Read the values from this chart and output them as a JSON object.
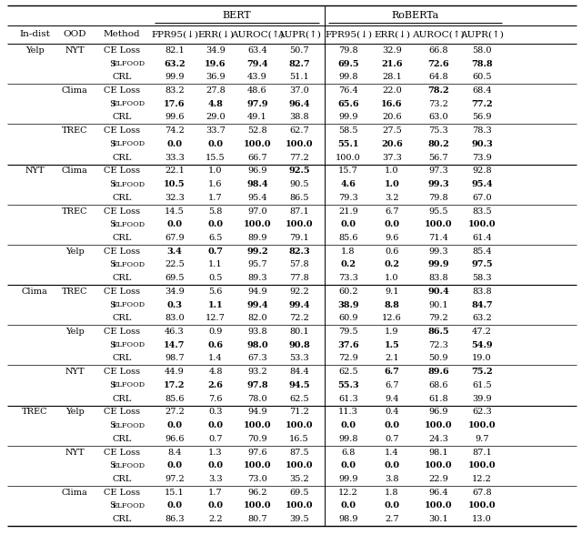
{
  "title": "",
  "bert_header": "BERT",
  "roberta_header": "RoBERTa",
  "col_headers": [
    "FPR95(↓)",
    "ERR(↓)",
    "AUROC(↑)",
    "AUPR(↑)",
    "FPR95(↓)",
    "ERR(↓)",
    "AUROC(↑)",
    "AUPR(↑)"
  ],
  "rows": [
    {
      "indist": "Yelp",
      "ood": "NYT",
      "method": "CE Loss",
      "bert": [
        82.1,
        34.9,
        63.4,
        50.7
      ],
      "roberta": [
        79.8,
        32.9,
        66.8,
        58.0
      ],
      "bold_bert": [],
      "bold_roberta": []
    },
    {
      "indist": "",
      "ood": "",
      "method": "SELFOOD",
      "bert": [
        63.2,
        19.6,
        79.4,
        82.7
      ],
      "roberta": [
        69.5,
        21.6,
        72.6,
        78.8
      ],
      "bold_bert": [
        0,
        1,
        2,
        3
      ],
      "bold_roberta": [
        0,
        1,
        2,
        3
      ]
    },
    {
      "indist": "",
      "ood": "",
      "method": "CRL",
      "bert": [
        99.9,
        36.9,
        43.9,
        51.1
      ],
      "roberta": [
        99.8,
        28.1,
        64.8,
        60.5
      ],
      "bold_bert": [],
      "bold_roberta": []
    },
    {
      "indist": "",
      "ood": "Clima",
      "method": "CE Loss",
      "bert": [
        83.2,
        27.8,
        48.6,
        37.0
      ],
      "roberta": [
        76.4,
        22.0,
        78.2,
        68.4
      ],
      "bold_bert": [],
      "bold_roberta": [
        2
      ]
    },
    {
      "indist": "",
      "ood": "",
      "method": "SELFOOD",
      "bert": [
        17.6,
        4.8,
        97.9,
        96.4
      ],
      "roberta": [
        65.6,
        16.6,
        73.2,
        77.2
      ],
      "bold_bert": [
        0,
        1,
        2,
        3
      ],
      "bold_roberta": [
        0,
        1,
        3
      ]
    },
    {
      "indist": "",
      "ood": "",
      "method": "CRL",
      "bert": [
        99.6,
        29.0,
        49.1,
        38.8
      ],
      "roberta": [
        99.9,
        20.6,
        63.0,
        56.9
      ],
      "bold_bert": [],
      "bold_roberta": []
    },
    {
      "indist": "",
      "ood": "TREC",
      "method": "CE Loss",
      "bert": [
        74.2,
        33.7,
        52.8,
        62.7
      ],
      "roberta": [
        58.5,
        27.5,
        75.3,
        78.3
      ],
      "bold_bert": [],
      "bold_roberta": []
    },
    {
      "indist": "",
      "ood": "",
      "method": "SELFOOD",
      "bert": [
        0.0,
        0.0,
        100.0,
        100.0
      ],
      "roberta": [
        55.1,
        20.6,
        80.2,
        90.3
      ],
      "bold_bert": [
        0,
        1,
        2,
        3
      ],
      "bold_roberta": [
        0,
        1,
        2,
        3
      ]
    },
    {
      "indist": "",
      "ood": "",
      "method": "CRL",
      "bert": [
        33.3,
        15.5,
        66.7,
        77.2
      ],
      "roberta": [
        100.0,
        37.3,
        56.7,
        73.9
      ],
      "bold_bert": [],
      "bold_roberta": []
    },
    {
      "indist": "NYT",
      "ood": "Clima",
      "method": "CE Loss",
      "bert": [
        22.1,
        1.0,
        96.9,
        92.5
      ],
      "roberta": [
        15.7,
        1.0,
        97.3,
        92.8
      ],
      "bold_bert": [
        3
      ],
      "bold_roberta": []
    },
    {
      "indist": "",
      "ood": "",
      "method": "SELFOOD",
      "bert": [
        10.5,
        1.6,
        98.4,
        90.5
      ],
      "roberta": [
        4.6,
        1.0,
        99.3,
        95.4
      ],
      "bold_bert": [
        0,
        2
      ],
      "bold_roberta": [
        0,
        1,
        2,
        3
      ]
    },
    {
      "indist": "",
      "ood": "",
      "method": "CRL",
      "bert": [
        32.3,
        1.7,
        95.4,
        86.5
      ],
      "roberta": [
        79.3,
        3.2,
        79.8,
        67.0
      ],
      "bold_bert": [],
      "bold_roberta": []
    },
    {
      "indist": "",
      "ood": "TREC",
      "method": "CE Loss",
      "bert": [
        14.5,
        5.8,
        97.0,
        87.1
      ],
      "roberta": [
        21.9,
        6.7,
        95.5,
        83.5
      ],
      "bold_bert": [],
      "bold_roberta": []
    },
    {
      "indist": "",
      "ood": "",
      "method": "SELFOOD",
      "bert": [
        0.0,
        0.0,
        100.0,
        100.0
      ],
      "roberta": [
        0.0,
        0.0,
        100.0,
        100.0
      ],
      "bold_bert": [
        0,
        1,
        2,
        3
      ],
      "bold_roberta": [
        0,
        1,
        2,
        3
      ]
    },
    {
      "indist": "",
      "ood": "",
      "method": "CRL",
      "bert": [
        67.9,
        6.5,
        89.9,
        79.1
      ],
      "roberta": [
        85.6,
        9.6,
        71.4,
        61.4
      ],
      "bold_bert": [],
      "bold_roberta": []
    },
    {
      "indist": "",
      "ood": "Yelp",
      "method": "CE Loss",
      "bert": [
        3.4,
        0.7,
        99.2,
        82.3
      ],
      "roberta": [
        1.8,
        0.6,
        99.3,
        85.4
      ],
      "bold_bert": [
        0,
        1,
        2,
        3
      ],
      "bold_roberta": []
    },
    {
      "indist": "",
      "ood": "",
      "method": "SELFOOD",
      "bert": [
        22.5,
        1.1,
        95.7,
        57.8
      ],
      "roberta": [
        0.2,
        0.2,
        99.9,
        97.5
      ],
      "bold_bert": [],
      "bold_roberta": [
        0,
        1,
        2,
        3
      ]
    },
    {
      "indist": "",
      "ood": "",
      "method": "CRL",
      "bert": [
        69.5,
        0.5,
        89.3,
        77.8
      ],
      "roberta": [
        73.3,
        1.0,
        83.8,
        58.3
      ],
      "bold_bert": [],
      "bold_roberta": []
    },
    {
      "indist": "Clima",
      "ood": "TREC",
      "method": "CE Loss",
      "bert": [
        34.9,
        5.6,
        94.9,
        92.2
      ],
      "roberta": [
        60.2,
        9.1,
        90.4,
        83.8
      ],
      "bold_bert": [],
      "bold_roberta": [
        2
      ]
    },
    {
      "indist": "",
      "ood": "",
      "method": "SELFOOD",
      "bert": [
        0.3,
        1.1,
        99.4,
        99.4
      ],
      "roberta": [
        38.9,
        8.8,
        90.1,
        84.7
      ],
      "bold_bert": [
        0,
        1,
        2,
        3
      ],
      "bold_roberta": [
        0,
        1,
        3
      ]
    },
    {
      "indist": "",
      "ood": "",
      "method": "CRL",
      "bert": [
        83.0,
        12.7,
        82.0,
        72.2
      ],
      "roberta": [
        60.9,
        12.6,
        79.2,
        63.2
      ],
      "bold_bert": [],
      "bold_roberta": []
    },
    {
      "indist": "",
      "ood": "Yelp",
      "method": "CE Loss",
      "bert": [
        46.3,
        0.9,
        93.8,
        80.1
      ],
      "roberta": [
        79.5,
        1.9,
        86.5,
        47.2
      ],
      "bold_bert": [],
      "bold_roberta": [
        2
      ]
    },
    {
      "indist": "",
      "ood": "",
      "method": "SELFOOD",
      "bert": [
        14.7,
        0.6,
        98.0,
        90.8
      ],
      "roberta": [
        37.6,
        1.5,
        72.3,
        54.9
      ],
      "bold_bert": [
        0,
        1,
        2,
        3
      ],
      "bold_roberta": [
        0,
        1,
        3
      ]
    },
    {
      "indist": "",
      "ood": "",
      "method": "CRL",
      "bert": [
        98.7,
        1.4,
        67.3,
        53.3
      ],
      "roberta": [
        72.9,
        2.1,
        50.9,
        19.0
      ],
      "bold_bert": [],
      "bold_roberta": []
    },
    {
      "indist": "",
      "ood": "NYT",
      "method": "CE Loss",
      "bert": [
        44.9,
        4.8,
        93.2,
        84.4
      ],
      "roberta": [
        62.5,
        6.7,
        89.6,
        75.2
      ],
      "bold_bert": [],
      "bold_roberta": [
        1,
        2,
        3
      ]
    },
    {
      "indist": "",
      "ood": "",
      "method": "SELFOOD",
      "bert": [
        17.2,
        2.6,
        97.8,
        94.5
      ],
      "roberta": [
        55.3,
        6.7,
        68.6,
        61.5
      ],
      "bold_bert": [
        0,
        1,
        2,
        3
      ],
      "bold_roberta": [
        0
      ]
    },
    {
      "indist": "",
      "ood": "",
      "method": "CRL",
      "bert": [
        85.6,
        7.6,
        78.0,
        62.5
      ],
      "roberta": [
        61.3,
        9.4,
        61.8,
        39.9
      ],
      "bold_bert": [],
      "bold_roberta": []
    },
    {
      "indist": "TREC",
      "ood": "Yelp",
      "method": "CE Loss",
      "bert": [
        27.2,
        0.3,
        94.9,
        71.2
      ],
      "roberta": [
        11.3,
        0.4,
        96.9,
        62.3
      ],
      "bold_bert": [],
      "bold_roberta": []
    },
    {
      "indist": "",
      "ood": "",
      "method": "SELFOOD",
      "bert": [
        0.0,
        0.0,
        100.0,
        100.0
      ],
      "roberta": [
        0.0,
        0.0,
        100.0,
        100.0
      ],
      "bold_bert": [
        0,
        1,
        2,
        3
      ],
      "bold_roberta": [
        0,
        1,
        2,
        3
      ]
    },
    {
      "indist": "",
      "ood": "",
      "method": "CRL",
      "bert": [
        96.6,
        0.7,
        70.9,
        16.5
      ],
      "roberta": [
        99.8,
        0.7,
        24.3,
        9.7
      ],
      "bold_bert": [],
      "bold_roberta": []
    },
    {
      "indist": "",
      "ood": "NYT",
      "method": "CE Loss",
      "bert": [
        8.4,
        1.3,
        97.6,
        87.5
      ],
      "roberta": [
        6.8,
        1.4,
        98.1,
        87.1
      ],
      "bold_bert": [],
      "bold_roberta": []
    },
    {
      "indist": "",
      "ood": "",
      "method": "SELFOOD",
      "bert": [
        0.0,
        0.0,
        100.0,
        100.0
      ],
      "roberta": [
        0.0,
        0.0,
        100.0,
        100.0
      ],
      "bold_bert": [
        0,
        1,
        2,
        3
      ],
      "bold_roberta": [
        0,
        1,
        2,
        3
      ]
    },
    {
      "indist": "",
      "ood": "",
      "method": "CRL",
      "bert": [
        97.2,
        3.3,
        73.0,
        35.2
      ],
      "roberta": [
        99.9,
        3.8,
        22.9,
        12.2
      ],
      "bold_bert": [],
      "bold_roberta": []
    },
    {
      "indist": "",
      "ood": "Clima",
      "method": "CE Loss",
      "bert": [
        15.1,
        1.7,
        96.2,
        69.5
      ],
      "roberta": [
        12.2,
        1.8,
        96.4,
        67.8
      ],
      "bold_bert": [],
      "bold_roberta": []
    },
    {
      "indist": "",
      "ood": "",
      "method": "SELFOOD",
      "bert": [
        0.0,
        0.0,
        100.0,
        100.0
      ],
      "roberta": [
        0.0,
        0.0,
        100.0,
        100.0
      ],
      "bold_bert": [
        0,
        1,
        2,
        3
      ],
      "bold_roberta": [
        0,
        1,
        2,
        3
      ]
    },
    {
      "indist": "",
      "ood": "",
      "method": "CRL",
      "bert": [
        86.3,
        2.2,
        80.7,
        39.5
      ],
      "roberta": [
        98.9,
        2.7,
        30.1,
        13.0
      ],
      "bold_bert": [],
      "bold_roberta": []
    }
  ],
  "major_separators": [
    9,
    18,
    27
  ],
  "minor_separators": [
    3,
    6,
    12,
    15,
    21,
    24,
    30,
    33
  ]
}
